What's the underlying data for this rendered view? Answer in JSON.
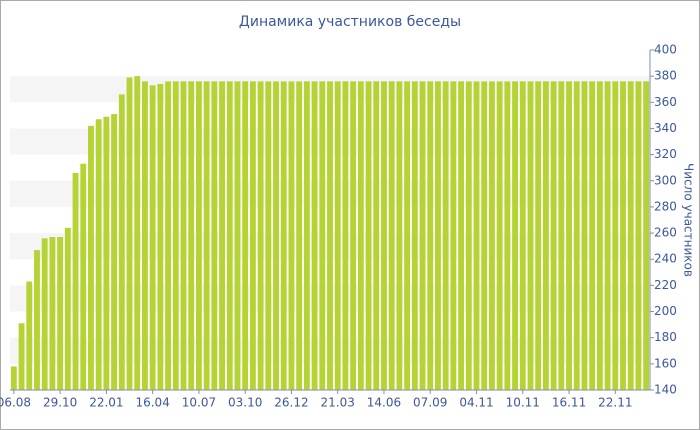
{
  "chart_data": {
    "type": "bar",
    "title": "Динамика участников беседы",
    "y_label": "Число участников",
    "categories": [
      "06.08",
      null,
      null,
      null,
      null,
      null,
      "29.10",
      null,
      null,
      null,
      null,
      null,
      "22.01",
      null,
      null,
      null,
      null,
      null,
      "16.04",
      null,
      null,
      null,
      null,
      null,
      "10.07",
      null,
      null,
      null,
      null,
      null,
      "03.10",
      null,
      null,
      null,
      null,
      null,
      "26.12",
      null,
      null,
      null,
      null,
      null,
      "21.03",
      null,
      null,
      null,
      null,
      null,
      "14.06",
      null,
      null,
      null,
      null,
      null,
      "07.09",
      null,
      null,
      null,
      null,
      null,
      "04.11",
      null,
      null,
      null,
      null,
      null,
      "10.11",
      null,
      null,
      null,
      null,
      null,
      "16.11",
      null,
      null,
      null,
      null,
      null,
      "22.11",
      null,
      null,
      null,
      null
    ],
    "values": [
      158,
      191,
      223,
      247,
      256,
      257,
      257,
      264,
      306,
      313,
      342,
      347,
      349,
      351,
      366,
      379,
      380,
      376,
      373,
      374,
      376,
      376,
      376,
      376,
      376,
      376,
      376,
      376,
      376,
      376,
      376,
      376,
      376,
      376,
      376,
      376,
      376,
      376,
      376,
      376,
      376,
      376,
      376,
      376,
      376,
      376,
      376,
      376,
      376,
      376,
      376,
      376,
      376,
      376,
      376,
      376,
      376,
      376,
      376,
      376,
      376,
      376,
      376,
      376,
      376,
      376,
      376,
      376,
      376,
      376,
      376,
      376,
      376,
      376,
      376,
      376,
      376,
      376,
      376,
      376,
      376,
      376,
      376
    ],
    "color": "#b5d334",
    "ylim": [
      140,
      400
    ],
    "yticks": [
      140,
      160,
      180,
      200,
      220,
      240,
      260,
      280,
      300,
      320,
      340,
      360,
      380,
      400
    ],
    "grid": true
  }
}
